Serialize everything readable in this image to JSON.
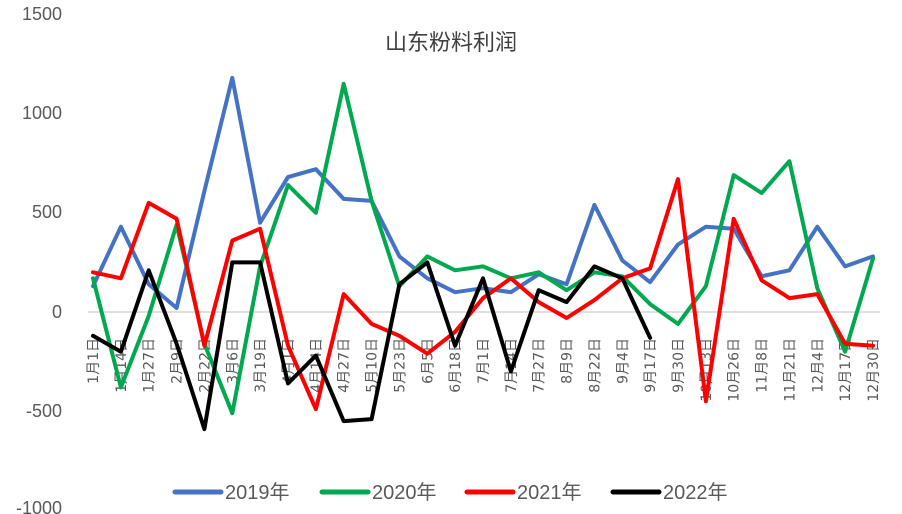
{
  "chart_data": {
    "type": "line",
    "title": "山东粉料利润",
    "xlabel": "",
    "ylabel": "",
    "ylim": [
      -1000,
      1500
    ],
    "yticks": [
      1500,
      1000,
      500,
      0,
      -500,
      -1000
    ],
    "grid": false,
    "legend_position": "bottom",
    "categories": [
      "1月1日",
      "1月14日",
      "1月27日",
      "2月9日",
      "2月22日",
      "3月6日",
      "3月19日",
      "4月1日",
      "4月14日",
      "4月27日",
      "5月10日",
      "5月23日",
      "6月5日",
      "6月18日",
      "7月1日",
      "7月14日",
      "7月27日",
      "8月9日",
      "8月22日",
      "9月4日",
      "9月17日",
      "9月30日",
      "10月13日",
      "10月26日",
      "11月8日",
      "11月21日",
      "12月4日",
      "12月17日",
      "12月30日"
    ],
    "series": [
      {
        "name": "2019年",
        "color": "#4472C4",
        "values": [
          130,
          430,
          140,
          20,
          610,
          1180,
          450,
          680,
          720,
          570,
          560,
          280,
          170,
          100,
          120,
          100,
          190,
          140,
          540,
          260,
          150,
          340,
          430,
          420,
          180,
          210,
          430,
          230,
          280
        ]
      },
      {
        "name": "2020年",
        "color": "#00A84F",
        "values": [
          170,
          -380,
          -20,
          440,
          -160,
          -510,
          230,
          640,
          500,
          1150,
          560,
          130,
          280,
          210,
          230,
          170,
          200,
          110,
          200,
          180,
          40,
          -60,
          130,
          690,
          600,
          760,
          120,
          -200,
          270
        ]
      },
      {
        "name": "2021年",
        "color": "#FF0000",
        "values": [
          200,
          170,
          550,
          470,
          -170,
          360,
          420,
          -170,
          -490,
          90,
          -60,
          -120,
          -210,
          -100,
          70,
          170,
          50,
          -30,
          60,
          170,
          220,
          670,
          -450,
          470,
          160,
          70,
          90,
          -160,
          -170
        ]
      },
      {
        "name": "2022年",
        "color": "#000000",
        "values": [
          -120,
          -200,
          210,
          -160,
          -590,
          250,
          250,
          -360,
          -220,
          -550,
          -540,
          140,
          250,
          -170,
          170,
          -300,
          110,
          50,
          230,
          170,
          -130,
          null,
          null,
          null,
          null,
          null,
          null,
          null,
          null
        ]
      }
    ]
  },
  "legend": [
    {
      "label": "2019年",
      "color": "#4472C4"
    },
    {
      "label": "2020年",
      "color": "#00A84F"
    },
    {
      "label": "2021年",
      "color": "#FF0000"
    },
    {
      "label": "2022年",
      "color": "#000000"
    }
  ],
  "axis": {
    "y_labels": [
      "1500",
      "1000",
      "500",
      "0",
      "-500",
      "-1000"
    ]
  }
}
